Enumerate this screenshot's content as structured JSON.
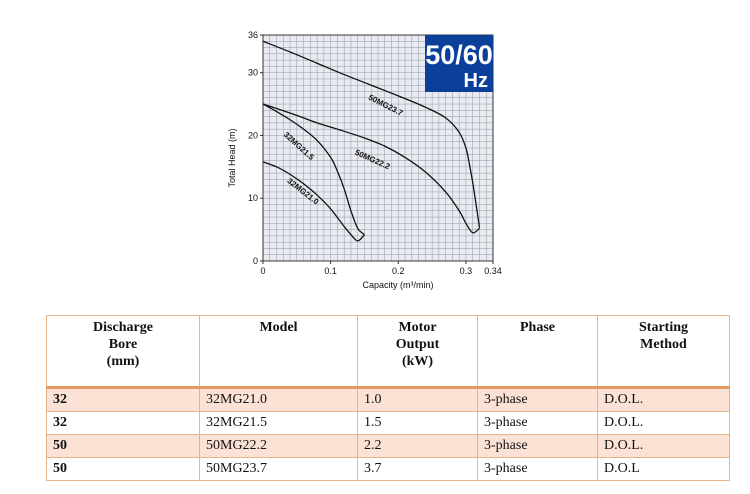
{
  "chart_data": {
    "type": "line",
    "ylabel": "Total Head (m)",
    "xlabel": "Capacity (m³/min)",
    "xlim": [
      0,
      0.34
    ],
    "ylim": [
      0,
      36
    ],
    "x_ticks": [
      {
        "value": 0,
        "label": "0"
      },
      {
        "value": 0.1,
        "label": "0.1"
      },
      {
        "value": 0.2,
        "label": "0.2"
      },
      {
        "value": 0.3,
        "label": "0.3"
      },
      {
        "value": 0.34,
        "label": "0.34"
      }
    ],
    "y_ticks": [
      {
        "value": 0,
        "label": "0"
      },
      {
        "value": 10,
        "label": "10"
      },
      {
        "value": 20,
        "label": "20"
      },
      {
        "value": 30,
        "label": "30"
      },
      {
        "value": 36,
        "label": "36"
      }
    ],
    "grid": true,
    "badge": {
      "main": "50/60",
      "sub": "Hz",
      "color": "#0b3f9a"
    },
    "series": [
      {
        "name": "32MG21.0",
        "x": [
          0,
          0.02,
          0.04,
          0.06,
          0.08,
          0.1,
          0.12,
          0.13,
          0.14,
          0.15
        ],
        "y": [
          15.8,
          15.0,
          13.8,
          12.3,
          10.5,
          8.3,
          5.5,
          4.2,
          3.2,
          4.2
        ]
      },
      {
        "name": "32MG21.5",
        "x": [
          0,
          0.02,
          0.04,
          0.06,
          0.08,
          0.1,
          0.11,
          0.12,
          0.13,
          0.14,
          0.15
        ],
        "y": [
          25.0,
          23.8,
          22.5,
          21.0,
          19.2,
          16.5,
          14.3,
          11.5,
          8.0,
          5.2,
          4.2
        ]
      },
      {
        "name": "50MG22.2",
        "x": [
          0,
          0.02,
          0.05,
          0.08,
          0.11,
          0.15,
          0.18,
          0.21,
          0.24,
          0.27,
          0.29,
          0.3,
          0.31,
          0.32
        ],
        "y": [
          25.0,
          24.3,
          23.2,
          22.0,
          21.0,
          19.6,
          18.3,
          16.5,
          14.2,
          11.0,
          8.0,
          6.0,
          4.5,
          5.2
        ]
      },
      {
        "name": "50MG23.7",
        "x": [
          0,
          0.04,
          0.08,
          0.12,
          0.16,
          0.2,
          0.24,
          0.27,
          0.29,
          0.3,
          0.305,
          0.31,
          0.315,
          0.32
        ],
        "y": [
          35.0,
          33.3,
          31.5,
          29.7,
          28.0,
          26.3,
          24.5,
          22.8,
          20.5,
          18.0,
          15.5,
          12.5,
          9.0,
          5.3
        ]
      }
    ]
  },
  "table": {
    "headers": [
      [
        "Discharge",
        "Bore",
        "(mm)"
      ],
      [
        "Model"
      ],
      [
        "Motor",
        "Output",
        "(kW)"
      ],
      [
        "Phase"
      ],
      [
        "Starting",
        "Method"
      ]
    ],
    "rows": [
      [
        "32",
        "32MG21.0",
        "1.0",
        "3-phase",
        "D.O.L."
      ],
      [
        "32",
        "32MG21.5",
        "1.5",
        "3-phase",
        "D.O.L."
      ],
      [
        "50",
        "50MG22.2",
        "2.2",
        "3-phase",
        "D.O.L."
      ],
      [
        "50",
        "50MG23.7",
        "3.7",
        "3-phase",
        "D.O.L"
      ]
    ]
  }
}
